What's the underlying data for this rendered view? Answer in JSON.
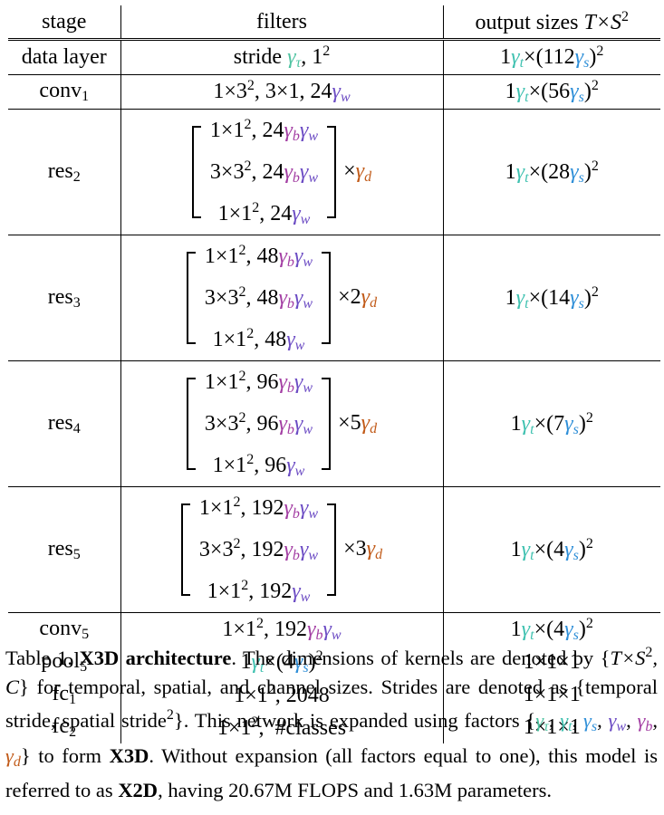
{
  "table": {
    "headers": {
      "stage": "stage",
      "filters": "filters",
      "output": "output sizes",
      "output_math": "T×S",
      "output_sup": "2"
    },
    "rows": [
      {
        "stage": "data layer",
        "filters_prefix": "stride ",
        "filters_g": "γ",
        "filters_g_sub": "τ",
        "filters_suffix": ", 1",
        "filters_sup": "2",
        "out_1": "1",
        "out_g1": "γ",
        "out_g1_sub": "t",
        "out_2": "×(112",
        "out_g2": "γ",
        "out_g2_sub": "s",
        "out_3": ")",
        "out_sup": "2"
      },
      {
        "stage": "conv",
        "stage_sub": "1",
        "filters_text": "1×3",
        "filters_sup": "2",
        "filters_mid": ", 3×1, 24",
        "filters_g": "γ",
        "filters_g_sub": "w",
        "out_1": "1",
        "out_g1": "γ",
        "out_g1_sub": "t",
        "out_2": "×(56",
        "out_g2": "γ",
        "out_g2_sub": "s",
        "out_3": ")",
        "out_sup": "2"
      },
      {
        "stage": "res",
        "stage_sub": "2",
        "lines": [
          {
            "a": "1×1",
            "sup": "2",
            "b": ", 24",
            "gb": "γ",
            "gb_sub": "b",
            "gw": "γ",
            "gw_sub": "w"
          },
          {
            "a": "3×3",
            "sup": "2",
            "b": ", 24",
            "gb": "γ",
            "gb_sub": "b",
            "gw": "γ",
            "gw_sub": "w"
          },
          {
            "a": "1×1",
            "sup": "2",
            "b": ", 24",
            "gw": "γ",
            "gw_sub": "w"
          }
        ],
        "mult": "×",
        "mult_g": "γ",
        "mult_g_sub": "d",
        "out_1": "1",
        "out_g1": "γ",
        "out_g1_sub": "t",
        "out_2": "×(28",
        "out_g2": "γ",
        "out_g2_sub": "s",
        "out_3": ")",
        "out_sup": "2"
      },
      {
        "stage": "res",
        "stage_sub": "3",
        "lines": [
          {
            "a": "1×1",
            "sup": "2",
            "b": ", 48",
            "gb": "γ",
            "gb_sub": "b",
            "gw": "γ",
            "gw_sub": "w"
          },
          {
            "a": "3×3",
            "sup": "2",
            "b": ", 48",
            "gb": "γ",
            "gb_sub": "b",
            "gw": "γ",
            "gw_sub": "w"
          },
          {
            "a": "1×1",
            "sup": "2",
            "b": ", 48",
            "gw": "γ",
            "gw_sub": "w"
          }
        ],
        "mult": "×2",
        "mult_g": "γ",
        "mult_g_sub": "d",
        "out_1": "1",
        "out_g1": "γ",
        "out_g1_sub": "t",
        "out_2": "×(14",
        "out_g2": "γ",
        "out_g2_sub": "s",
        "out_3": ")",
        "out_sup": "2"
      },
      {
        "stage": "res",
        "stage_sub": "4",
        "lines": [
          {
            "a": "1×1",
            "sup": "2",
            "b": ", 96",
            "gb": "γ",
            "gb_sub": "b",
            "gw": "γ",
            "gw_sub": "w"
          },
          {
            "a": "3×3",
            "sup": "2",
            "b": ", 96",
            "gb": "γ",
            "gb_sub": "b",
            "gw": "γ",
            "gw_sub": "w"
          },
          {
            "a": "1×1",
            "sup": "2",
            "b": ", 96",
            "gw": "γ",
            "gw_sub": "w"
          }
        ],
        "mult": "×5",
        "mult_g": "γ",
        "mult_g_sub": "d",
        "out_1": "1",
        "out_g1": "γ",
        "out_g1_sub": "t",
        "out_2": "×(7",
        "out_g2": "γ",
        "out_g2_sub": "s",
        "out_3": ")",
        "out_sup": "2"
      },
      {
        "stage": "res",
        "stage_sub": "5",
        "lines": [
          {
            "a": "1×1",
            "sup": "2",
            "b": ", 192",
            "gb": "γ",
            "gb_sub": "b",
            "gw": "γ",
            "gw_sub": "w"
          },
          {
            "a": "3×3",
            "sup": "2",
            "b": ", 192",
            "gb": "γ",
            "gb_sub": "b",
            "gw": "γ",
            "gw_sub": "w"
          },
          {
            "a": "1×1",
            "sup": "2",
            "b": ", 192",
            "gw": "γ",
            "gw_sub": "w"
          }
        ],
        "mult": "×3",
        "mult_g": "γ",
        "mult_g_sub": "d",
        "out_1": "1",
        "out_g1": "γ",
        "out_g1_sub": "t",
        "out_2": "×(4",
        "out_g2": "γ",
        "out_g2_sub": "s",
        "out_3": ")",
        "out_sup": "2"
      },
      {
        "stage": "conv",
        "stage_sub": "5",
        "filters_text": "1×1",
        "filters_sup": "2",
        "filters_mid": ", 192",
        "gb": "γ",
        "gb_sub": "b",
        "gw": "γ",
        "gw_sub": "w",
        "out_1": "1",
        "out_g1": "γ",
        "out_g1_sub": "t",
        "out_2": "×(4",
        "out_g2": "γ",
        "out_g2_sub": "s",
        "out_3": ")",
        "out_sup": "2"
      },
      {
        "stage": "pool",
        "stage_sub": "5",
        "f_1": "1",
        "f_g1": "γ",
        "f_g1_sub": "t",
        "f_2": "×(4",
        "f_g2": "γ",
        "f_g2_sub": "s",
        "f_3": ")",
        "f_sup": "2",
        "out": "1×1×1"
      },
      {
        "stage": "fc",
        "stage_sub": "1",
        "filters_text": "1×1",
        "filters_sup": "2",
        "filters_mid": ", 2048",
        "out": "1×1×1"
      },
      {
        "stage": "fc",
        "stage_sub": "2",
        "filters_text": "1×1",
        "filters_sup": "2",
        "filters_mid": ",  #classes",
        "out": "1×1×1"
      }
    ]
  },
  "caption": {
    "label": "Table 1.",
    "title": "X3D architecture",
    "t1": ". The dimensions of kernels are denoted by {",
    "t1_math": "T×S",
    "t1_sup": "2",
    "t1_c": ", C",
    "t2": "} for temporal, spatial, and channel sizes. Strides are denoted as {temporal stride, spatial stride",
    "t2_sup": "2",
    "t3": "}. This network is expanded using factors {",
    "factors": [
      {
        "g": "γ",
        "sub": "τ",
        "cls": "g-tau"
      },
      {
        "g": "γ",
        "sub": "t",
        "cls": "g-t"
      },
      {
        "g": "γ",
        "sub": "s",
        "cls": "g-s"
      },
      {
        "g": "γ",
        "sub": "w",
        "cls": "g-w"
      },
      {
        "g": "γ",
        "sub": "b",
        "cls": "g-b"
      },
      {
        "g": "γ",
        "sub": "d",
        "cls": "g-d"
      }
    ],
    "t4": "} to form ",
    "x3d": "X3D",
    "t5": ". Without expansion (all factors equal to one), this model is referred to as ",
    "x2d": "X2D",
    "t6": ", having 20.67M FLOPS and 1.63M parameters."
  },
  "colors": {
    "tau": "#4fc3a1",
    "t": "#3fc1b0",
    "s": "#2f8fd8",
    "w": "#6c4cc4",
    "b": "#a33ea3",
    "d": "#c15a18"
  }
}
